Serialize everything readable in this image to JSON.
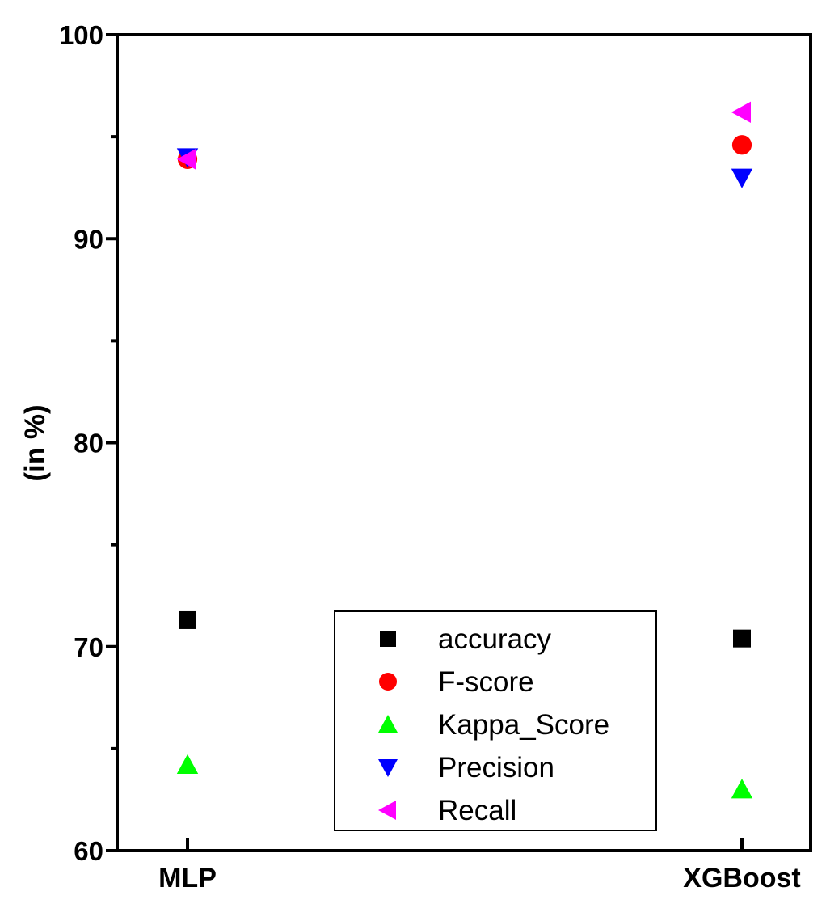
{
  "chart_data": {
    "type": "scatter",
    "title": "",
    "xlabel": "",
    "ylabel": "(in %)",
    "categories": [
      "MLP",
      "XGBoost"
    ],
    "ylim": [
      60,
      100
    ],
    "yticks": [
      60,
      70,
      80,
      90,
      100
    ],
    "grid": false,
    "legend_position": "bottom-center",
    "series": [
      {
        "name": "accuracy",
        "marker": "square",
        "color": "#000000",
        "values": [
          71.3,
          70.4
        ]
      },
      {
        "name": "F-score",
        "marker": "circle",
        "color": "#ff0000",
        "values": [
          93.9,
          94.6
        ]
      },
      {
        "name": "Kappa_Score",
        "marker": "triangle-up",
        "color": "#00ff00",
        "values": [
          64.2,
          63.0
        ]
      },
      {
        "name": "Precision",
        "marker": "triangle-down",
        "color": "#0000ff",
        "values": [
          94.0,
          93.0
        ]
      },
      {
        "name": "Recall",
        "marker": "triangle-left",
        "color": "#ff00ff",
        "values": [
          93.9,
          96.2
        ]
      }
    ]
  }
}
